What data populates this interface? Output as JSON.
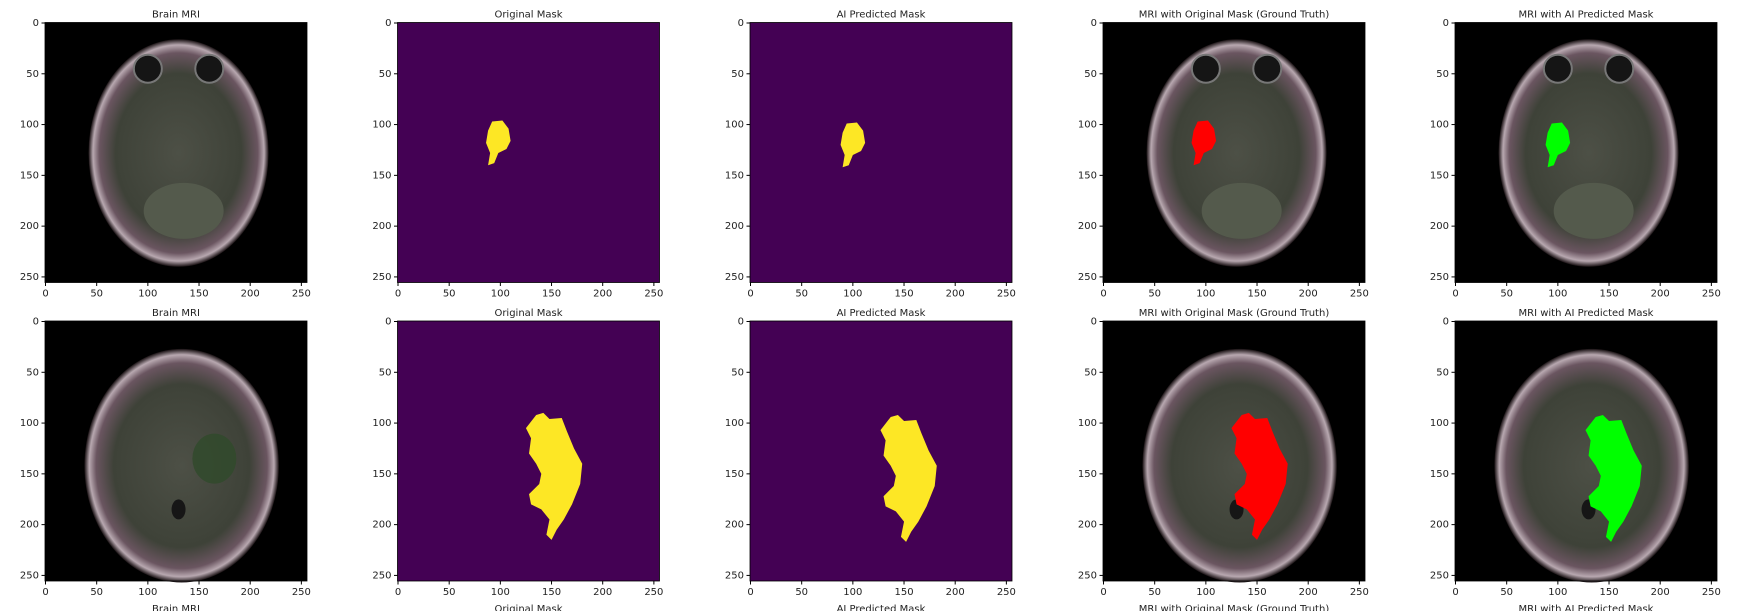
{
  "figure": {
    "rows": [
      [
        "Brain MRI",
        "Original Mask",
        "AI Predicted Mask",
        "MRI with Original Mask (Ground Truth)",
        "MRI with AI Predicted Mask"
      ],
      [
        "Brain MRI",
        "Original Mask",
        "AI Predicted Mask",
        "MRI with Original Mask (Ground Truth)",
        "MRI with AI Predicted Mask"
      ],
      [
        "Brain MRI",
        "Original Mask",
        "AI Predicted Mask",
        "MRI with Original Mask (Ground Truth)",
        "MRI with AI Predicted Mask"
      ]
    ],
    "xticks": [
      0,
      50,
      100,
      150,
      200,
      250
    ],
    "yticks": [
      0,
      50,
      100,
      150,
      200,
      250
    ]
  }
}
